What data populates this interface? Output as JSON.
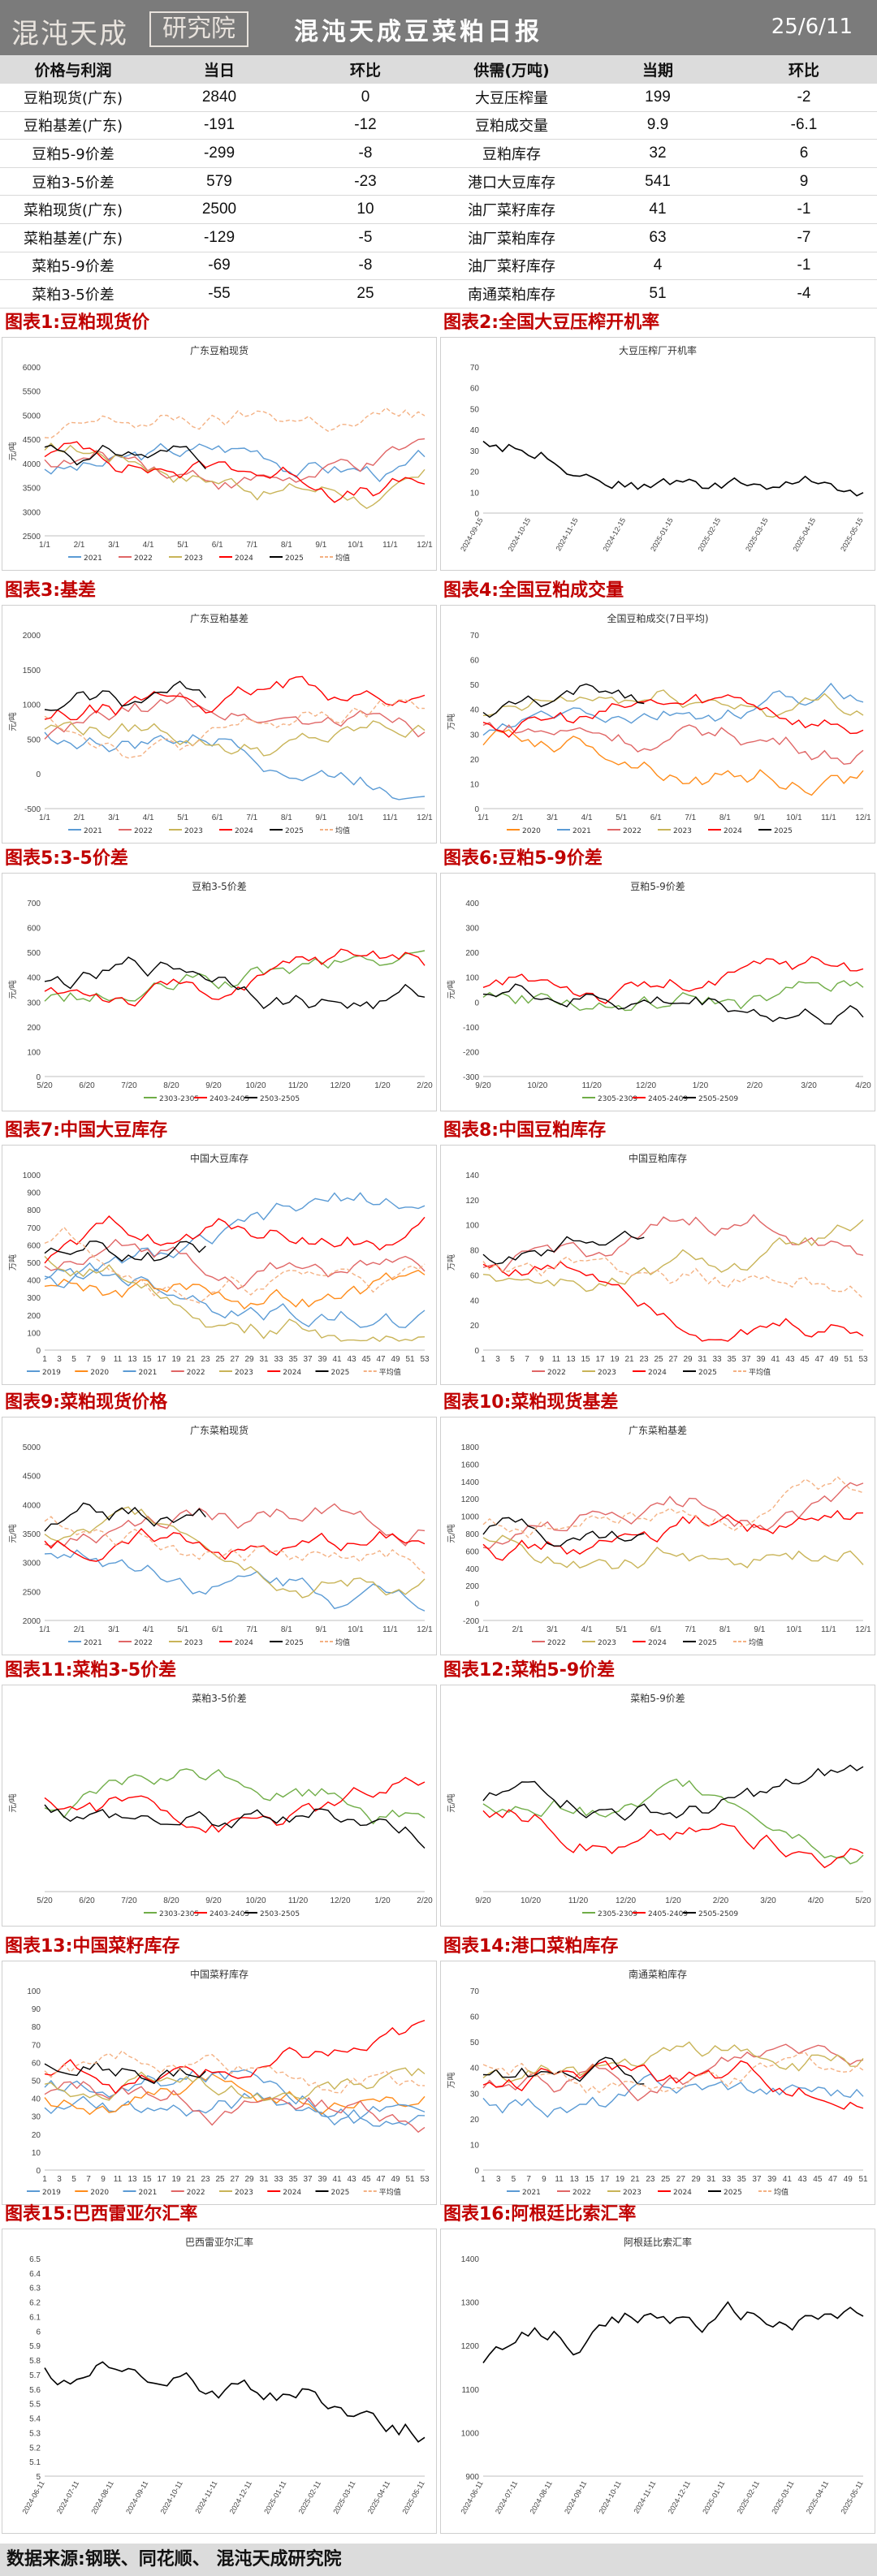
{
  "header": {
    "logo_text": "混沌天成",
    "logo_badge": "研究院",
    "title": "混沌天成豆菜粕日报",
    "date": "25/6/11"
  },
  "table_left": {
    "headers": [
      "价格与利润",
      "当日",
      "环比"
    ],
    "rows": [
      [
        "豆粕现货(广东)",
        "2840",
        "0"
      ],
      [
        "豆粕基差(广东)",
        "-191",
        "-12"
      ],
      [
        "豆粕5-9价差",
        "-299",
        "-8"
      ],
      [
        "豆粕3-5价差",
        "579",
        "-23"
      ],
      [
        "菜粕现货(广东)",
        "2500",
        "10"
      ],
      [
        "菜粕基差(广东)",
        "-129",
        "-5"
      ],
      [
        "菜粕5-9价差",
        "-69",
        "-8"
      ],
      [
        "菜粕3-5价差",
        "-55",
        "25"
      ]
    ]
  },
  "table_right": {
    "headers": [
      "供需(万吨)",
      "当期",
      "环比"
    ],
    "rows": [
      [
        "大豆压榨量",
        "199",
        "-2"
      ],
      [
        "豆粕成交量",
        "9.9",
        "-6.1"
      ],
      [
        "豆粕库存",
        "32",
        "6"
      ],
      [
        "港口大豆库存",
        "541",
        "9"
      ],
      [
        "油厂菜籽库存",
        "41",
        "-1"
      ],
      [
        "油厂菜粕库存",
        "63",
        "-7"
      ],
      [
        "油厂菜籽库存",
        "4",
        "-1"
      ],
      [
        "南通菜粕库存",
        "51",
        "-4"
      ]
    ]
  },
  "colors": {
    "2019": "#5b9bd5",
    "2020": "#ff8c1a",
    "2021": "#5b9bd5",
    "2022": "#e06666",
    "2023": "#c9b458",
    "2024": "#ff0000",
    "2025": "#000000",
    "avg": "#f4b183",
    "green": "#70ad47"
  },
  "charts": [
    {
      "label": "图表1:豆粕现货价",
      "title": "广东豆粕现货",
      "ylabel": "元/吨",
      "yticks": [
        "6000",
        "5500",
        "5000",
        "4500",
        "4000",
        "3500",
        "3000",
        "2500"
      ],
      "xticks": [
        "1/1",
        "2/1",
        "3/1",
        "4/1",
        "5/1",
        "6/1",
        "7/1",
        "8/1",
        "9/1",
        "10/1",
        "11/1",
        "12/1"
      ],
      "legend": [
        "2021",
        "2022",
        "2023",
        "2024",
        "2025",
        "均值"
      ]
    },
    {
      "label": "图表2:全国大豆压榨开机率",
      "title": "大豆压榨厂开机率",
      "ylabel": "",
      "yticks": [
        "70",
        "60",
        "50",
        "40",
        "30",
        "20",
        "10",
        "0"
      ],
      "xticks": [
        "2024-09-15",
        "2024-10-15",
        "2024-11-15",
        "2024-12-15",
        "2025-01-15",
        "2025-02-15",
        "2025-03-15",
        "2025-04-15",
        "2025-05-15"
      ],
      "legend": []
    },
    {
      "label": "图表3:基差",
      "title": "广东豆粕基差",
      "ylabel": "元/吨",
      "yticks": [
        "2000",
        "1500",
        "1000",
        "500",
        "0",
        "-500"
      ],
      "xticks": [
        "1/1",
        "2/1",
        "3/1",
        "4/1",
        "5/1",
        "6/1",
        "7/1",
        "8/1",
        "9/1",
        "10/1",
        "11/1",
        "12/1"
      ],
      "legend": [
        "2021",
        "2022",
        "2023",
        "2024",
        "2025",
        "均值"
      ]
    },
    {
      "label": "图表4:全国豆粕成交量",
      "title": "全国豆粕成交(7日平均)",
      "ylabel": "万吨",
      "yticks": [
        "70",
        "60",
        "50",
        "40",
        "30",
        "20",
        "10",
        "0"
      ],
      "xticks": [
        "1/1",
        "2/1",
        "3/1",
        "4/1",
        "5/1",
        "6/1",
        "7/1",
        "8/1",
        "9/1",
        "10/1",
        "11/1",
        "12/1"
      ],
      "legend": [
        "2020",
        "2021",
        "2022",
        "2023",
        "2024",
        "2025"
      ]
    },
    {
      "label": "图表5:3-5价差",
      "title": "豆粕3-5价差",
      "ylabel": "元/吨",
      "yticks": [
        "700",
        "600",
        "500",
        "400",
        "300",
        "200",
        "100",
        "0"
      ],
      "xticks": [
        "5/20",
        "6/20",
        "7/20",
        "8/20",
        "9/20",
        "10/20",
        "11/20",
        "12/20",
        "1/20",
        "2/20"
      ],
      "legend": [
        "2303-2305",
        "2403-2405",
        "2503-2505"
      ]
    },
    {
      "label": "图表6:豆粕5-9价差",
      "title": "豆粕5-9价差",
      "ylabel": "元/吨",
      "yticks": [
        "400",
        "300",
        "200",
        "100",
        "0",
        "-100",
        "-200",
        "-300"
      ],
      "xticks": [
        "9/20",
        "10/20",
        "11/20",
        "12/20",
        "1/20",
        "2/20",
        "3/20",
        "4/20"
      ],
      "legend": [
        "2305-2309",
        "2405-2409",
        "2505-2509"
      ]
    },
    {
      "label": "图表7:中国大豆库存",
      "title": "中国大豆库存",
      "ylabel": "万吨",
      "yticks": [
        "1000",
        "900",
        "800",
        "700",
        "600",
        "500",
        "400",
        "300",
        "200",
        "100",
        "0"
      ],
      "xticks": [
        "1",
        "3",
        "5",
        "7",
        "9",
        "11",
        "13",
        "15",
        "17",
        "19",
        "21",
        "23",
        "25",
        "27",
        "29",
        "31",
        "33",
        "35",
        "37",
        "39",
        "41",
        "43",
        "45",
        "47",
        "49",
        "51",
        "53"
      ],
      "legend": [
        "2019",
        "2020",
        "2021",
        "2022",
        "2023",
        "2024",
        "2025",
        "平均值"
      ]
    },
    {
      "label": "图表8:中国豆粕库存",
      "title": "中国豆粕库存",
      "ylabel": "万吨",
      "yticks": [
        "140",
        "120",
        "100",
        "80",
        "60",
        "40",
        "20",
        "0"
      ],
      "xticks": [
        "1",
        "3",
        "5",
        "7",
        "9",
        "11",
        "13",
        "15",
        "17",
        "19",
        "21",
        "23",
        "25",
        "27",
        "29",
        "31",
        "33",
        "35",
        "37",
        "39",
        "41",
        "43",
        "45",
        "47",
        "49",
        "51",
        "53"
      ],
      "legend": [
        "2022",
        "2023",
        "2024",
        "2025",
        "平均值"
      ]
    },
    {
      "label": "图表9:菜粕现货价格",
      "title": "广东菜粕现货",
      "ylabel": "元/吨",
      "yticks": [
        "5000",
        "4500",
        "4000",
        "3500",
        "3000",
        "2500",
        "2000"
      ],
      "xticks": [
        "1/1",
        "2/1",
        "3/1",
        "4/1",
        "5/1",
        "6/1",
        "7/1",
        "8/1",
        "9/1",
        "10/1",
        "11/1",
        "12/1"
      ],
      "legend": [
        "2021",
        "2022",
        "2023",
        "2024",
        "2025",
        "均值"
      ]
    },
    {
      "label": "图表10:菜粕现货基差",
      "title": "广东菜粕基差",
      "ylabel": "元/吨",
      "yticks": [
        "1800",
        "1600",
        "1400",
        "1200",
        "1000",
        "800",
        "600",
        "400",
        "200",
        "0",
        "-200"
      ],
      "xticks": [
        "1/1",
        "2/1",
        "3/1",
        "4/1",
        "5/1",
        "6/1",
        "7/1",
        "8/1",
        "9/1",
        "10/1",
        "11/1",
        "12/1"
      ],
      "legend": [
        "2022",
        "2023",
        "2024",
        "2025",
        "均值"
      ]
    },
    {
      "label": "图表11:菜粕3-5价差",
      "title": "菜粕3-5价差",
      "ylabel": "元/吨",
      "yticks": [
        "",
        "",
        "",
        "",
        "",
        ""
      ],
      "xticks": [
        "5/20",
        "6/20",
        "7/20",
        "8/20",
        "9/20",
        "10/20",
        "11/20",
        "12/20",
        "1/20",
        "2/20"
      ],
      "legend": [
        "2303-2305",
        "2403-2405",
        "2503-2505"
      ]
    },
    {
      "label": "图表12:菜粕5-9价差",
      "title": "菜粕5-9价差",
      "ylabel": "元/吨",
      "yticks": [
        "",
        "",
        "",
        "",
        "",
        "",
        ""
      ],
      "xticks": [
        "9/20",
        "10/20",
        "11/20",
        "12/20",
        "1/20",
        "2/20",
        "3/20",
        "4/20",
        "5/20"
      ],
      "legend": [
        "2305-2309",
        "2405-2409",
        "2505-2509"
      ]
    },
    {
      "label": "图表13:中国菜籽库存",
      "title": "中国菜籽库存",
      "ylabel": "",
      "yticks": [
        "100",
        "90",
        "80",
        "70",
        "60",
        "50",
        "40",
        "30",
        "20",
        "10",
        "0"
      ],
      "xticks": [
        "1",
        "3",
        "5",
        "7",
        "9",
        "11",
        "13",
        "15",
        "17",
        "19",
        "21",
        "23",
        "25",
        "27",
        "29",
        "31",
        "33",
        "35",
        "37",
        "39",
        "41",
        "43",
        "45",
        "47",
        "49",
        "51",
        "53"
      ],
      "legend": [
        "2019",
        "2020",
        "2021",
        "2022",
        "2023",
        "2024",
        "2025",
        "平均值"
      ]
    },
    {
      "label": "图表14:港口菜粕库存",
      "title": "南通菜粕库存",
      "ylabel": "万吨",
      "yticks": [
        "70",
        "60",
        "50",
        "40",
        "30",
        "20",
        "10",
        "0"
      ],
      "xticks": [
        "1",
        "3",
        "5",
        "7",
        "9",
        "11",
        "13",
        "15",
        "17",
        "19",
        "21",
        "23",
        "25",
        "27",
        "29",
        "31",
        "33",
        "35",
        "37",
        "39",
        "41",
        "43",
        "45",
        "47",
        "49",
        "51"
      ],
      "legend": [
        "2021",
        "2022",
        "2023",
        "2024",
        "2025",
        "均值"
      ]
    },
    {
      "label": "图表15:巴西雷亚尔汇率",
      "title": "巴西雷亚尔汇率",
      "ylabel": "",
      "yticks": [
        "6.5",
        "6.4",
        "6.3",
        "6.2",
        "6.1",
        "6",
        "5.9",
        "5.8",
        "5.7",
        "5.6",
        "5.5",
        "5.4",
        "5.3",
        "5.2",
        "5.1",
        "5"
      ],
      "xticks": [
        "2024-06-11",
        "2024-07-11",
        "2024-08-11",
        "2024-09-11",
        "2024-10-11",
        "2024-11-11",
        "2024-12-11",
        "2025-01-11",
        "2025-02-11",
        "2025-03-11",
        "2025-04-11",
        "2025-05-11"
      ],
      "legend": []
    },
    {
      "label": "图表16:阿根廷比索汇率",
      "title": "阿根廷比索汇率",
      "ylabel": "",
      "yticks": [
        "1400",
        "1300",
        "1200",
        "1100",
        "1000",
        "900"
      ],
      "xticks": [
        "2024-06-11",
        "2024-07-11",
        "2024-08-11",
        "2024-09-11",
        "2024-10-11",
        "2024-11-11",
        "2024-12-11",
        "2025-01-11",
        "2025-02-11",
        "2025-03-11",
        "2025-04-11",
        "2025-05-11"
      ],
      "legend": []
    }
  ],
  "footer": {
    "text": "数据来源:钢联、同花顺、 混沌天成研究院"
  }
}
